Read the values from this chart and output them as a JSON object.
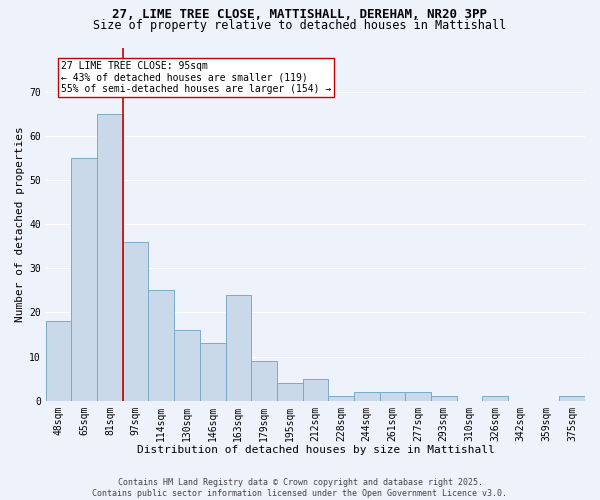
{
  "title_line1": "27, LIME TREE CLOSE, MATTISHALL, DEREHAM, NR20 3PP",
  "title_line2": "Size of property relative to detached houses in Mattishall",
  "xlabel": "Distribution of detached houses by size in Mattishall",
  "ylabel": "Number of detached properties",
  "categories": [
    "48sqm",
    "65sqm",
    "81sqm",
    "97sqm",
    "114sqm",
    "130sqm",
    "146sqm",
    "163sqm",
    "179sqm",
    "195sqm",
    "212sqm",
    "228sqm",
    "244sqm",
    "261sqm",
    "277sqm",
    "293sqm",
    "310sqm",
    "326sqm",
    "342sqm",
    "359sqm",
    "375sqm"
  ],
  "values": [
    18,
    55,
    65,
    36,
    25,
    16,
    13,
    24,
    9,
    4,
    5,
    1,
    2,
    2,
    2,
    1,
    0,
    1,
    0,
    0,
    1
  ],
  "bar_color": "#c9d9ea",
  "bar_edge_color": "#7aaac8",
  "vline_color": "#cc0000",
  "annotation_text": "27 LIME TREE CLOSE: 95sqm\n← 43% of detached houses are smaller (119)\n55% of semi-detached houses are larger (154) →",
  "annotation_box_color": "#ffffff",
  "annotation_box_edge": "#cc0000",
  "ylim": [
    0,
    80
  ],
  "yticks": [
    0,
    10,
    20,
    30,
    40,
    50,
    60,
    70
  ],
  "bg_color": "#eef2fb",
  "grid_color": "#ffffff",
  "footer_text": "Contains HM Land Registry data © Crown copyright and database right 2025.\nContains public sector information licensed under the Open Government Licence v3.0.",
  "title_fontsize": 9,
  "subtitle_fontsize": 8.5,
  "axis_label_fontsize": 8,
  "tick_fontsize": 7,
  "annotation_fontsize": 7,
  "footer_fontsize": 6
}
